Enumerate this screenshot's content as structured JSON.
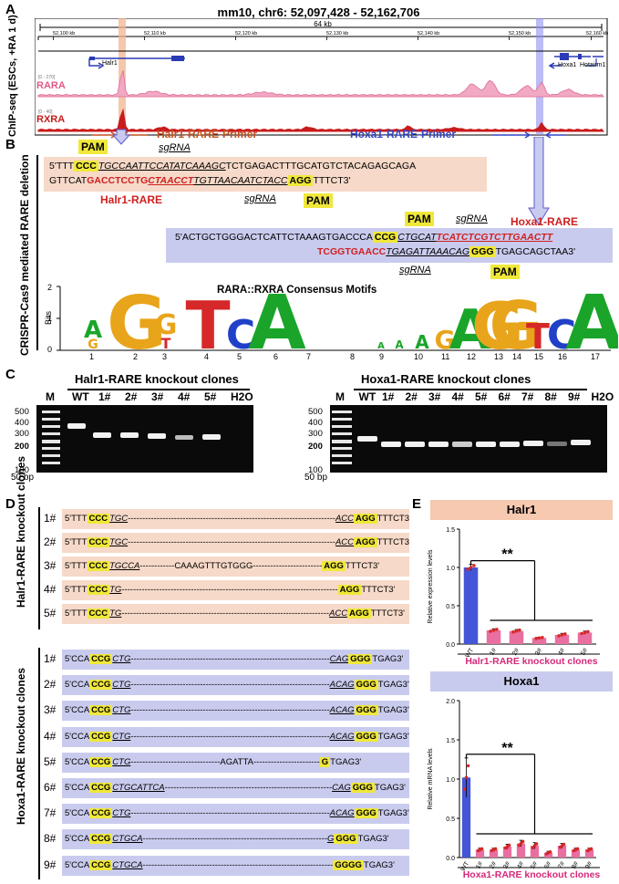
{
  "panelA": {
    "letter": "A",
    "coords": "mm10, chr6: 52,097,428 - 52,162,706",
    "span": "64 kb",
    "ticks": [
      "52,100 kb",
      "52,110 kb",
      "52,120 kb",
      "52,130 kb",
      "52,140 kb",
      "52,150 kb",
      "52,160 kb"
    ],
    "side_label": "ChIP-seq (ESCs, +RA 1 d)",
    "gene_halr1": "Halr1",
    "gene_hoxa1": "Hoxa1",
    "gene_hotairm1": "Hotairm1",
    "track_rara": "RARA",
    "track_rxra": "RXRA",
    "scale_rara": "[0 - 270]",
    "scale_rxra": "[0 - 40]",
    "primer_halr1": "Halr1-RARE-Primer",
    "primer_hoxa1": "Hoxa1-RARE-Primer"
  },
  "panelB": {
    "letter": "B",
    "side_label": "CRISPR-Cas9 mediated RARE deletion",
    "pam": "PAM",
    "sgrna": "sgRNA",
    "halr1_rare": "Halr1-RARE",
    "hoxa1_rare": "Hoxa1-RARE",
    "motif_title": "RARA::RXRA Consensus Motifs",
    "bits_label": "Bits",
    "bits_ticks": [
      "0",
      "1",
      "2"
    ],
    "positions": [
      "1",
      "2",
      "3",
      "4",
      "5",
      "6",
      "7",
      "8",
      "9",
      "10",
      "11",
      "12",
      "13",
      "14",
      "15",
      "16",
      "17"
    ],
    "halr_top": {
      "p1": "5'TTT",
      "pam": "CCC",
      "s1": "TGCCAATTCCATATCAAAGC",
      "p2": "TCTGAGACTTTGCATGTCTACAGAGCAGA"
    },
    "halr_bot": {
      "p1": "GTTCAT",
      "r1": "GACCTCCTG",
      "r2": "CTAACCT",
      "s1": "TGTTAACAATCTACC",
      "pam": "AGG",
      "p2": "TTTCT3'"
    },
    "hoxa_top": {
      "p1": "5'ACTGCTGGGACTCATTCTAAAGTGACCCA",
      "pam": "CCG",
      "s1": "CTGCAT",
      "r1": "TCATCTCGTCTTGAACTT"
    },
    "hoxa_bot": {
      "r1": "TCGGTGAACC",
      "s1": "TGAGATTAAACAG",
      "pam": "GGG",
      "p2": "TGAGCAGCTAA3'"
    }
  },
  "panelC": {
    "letter": "C",
    "halr_title": "Halr1-RARE knockout clones",
    "hoxa_title": "Hoxa1-RARE knockout clones",
    "halr_lanes": [
      "M",
      "WT",
      "1#",
      "2#",
      "3#",
      "4#",
      "5#",
      "H2O"
    ],
    "hoxa_lanes": [
      "M",
      "WT",
      "1#",
      "2#",
      "3#",
      "4#",
      "5#",
      "6#",
      "7#",
      "8#",
      "9#",
      "H2O"
    ],
    "markers": [
      "500",
      "400",
      "300",
      "200",
      "100"
    ],
    "ladder": "50 bp"
  },
  "panelD": {
    "letter": "D",
    "halr_side": "Halr1-RARE knockout clones",
    "hoxa_side": "Hoxa1-RARE knockout clones",
    "halr_rows": [
      {
        "n": "1#",
        "a": "5'TTT",
        "pam": "CCC",
        "s": "TGC",
        "mid": "------------------------------------------------------------------------",
        "s2": "ACC",
        "pam2": "AGG",
        "e": "TTTCT3'"
      },
      {
        "n": "2#",
        "a": "5'TTT",
        "pam": "CCC",
        "s": "TGC",
        "mid": "------------------------------------------------------------------------",
        "s2": "ACC",
        "pam2": "AGG",
        "e": "TTTCT3'"
      },
      {
        "n": "3#",
        "a": "5'TTT",
        "pam": "CCC",
        "s": "TGCCA",
        "mid": "------------CAAAGTTTGTGGG------------------------",
        "s2": "",
        "pam2": "AGG",
        "e": "TTTCT3'"
      },
      {
        "n": "4#",
        "a": "5'TTT",
        "pam": "CCC",
        "s": "TG",
        "mid": "---------------------------------------------------------------------------",
        "s2": "",
        "pam2": "AGG",
        "e": "TTTCT3'"
      },
      {
        "n": "5#",
        "a": "5'TTT",
        "pam": "CCC",
        "s": "TG",
        "mid": "------------------------------------------------------------------------",
        "s2": "ACC",
        "pam2": "AGG",
        "e": "TTTCT3'"
      }
    ],
    "hoxa_rows": [
      {
        "n": "1#",
        "a": "5'CCA",
        "pam": "CCG",
        "s": "CTG",
        "mid": "---------------------------------------------------------------------",
        "s2": "CAG",
        "pam2": "GGG",
        "e": "TGAG3'"
      },
      {
        "n": "2#",
        "a": "5'CCA",
        "pam": "CCG",
        "s": "CTG",
        "mid": "---------------------------------------------------------------------",
        "s2": "ACAG",
        "pam2": "GGG",
        "e": "TGAG3'"
      },
      {
        "n": "3#",
        "a": "5'CCA",
        "pam": "CCG",
        "s": "CTG",
        "mid": "---------------------------------------------------------------------",
        "s2": "ACAG",
        "pam2": "GGG",
        "e": "TGAG3'"
      },
      {
        "n": "4#",
        "a": "5'CCA",
        "pam": "CCG",
        "s": "CTG",
        "mid": "---------------------------------------------------------------------",
        "s2": "ACAG",
        "pam2": "GGG",
        "e": "TGAG3'"
      },
      {
        "n": "5#",
        "a": "5'CCA",
        "pam": "CCG",
        "s": "CTG",
        "mid": "-------------------------------AGATTA-----------------------",
        "s2": "",
        "pam2": "G",
        "e": "TGAG3'"
      },
      {
        "n": "6#",
        "a": "5'CCA",
        "pam": "CCG",
        "s": "CTGCATTCA",
        "mid": "----------------------------------------------------------",
        "s2": "CAG",
        "pam2": "GGG",
        "e": "TGAG3'"
      },
      {
        "n": "7#",
        "a": "5'CCA",
        "pam": "CCG",
        "s": "CTG",
        "mid": "---------------------------------------------------------------------",
        "s2": "ACAG",
        "pam2": "GGG",
        "e": "TGAG3'"
      },
      {
        "n": "8#",
        "a": "5'CCA",
        "pam": "CCG",
        "s": "CTGCA",
        "mid": "----------------------------------------------------------------",
        "s2": "G",
        "pam2": "GGG",
        "e": "TGAG3'"
      },
      {
        "n": "9#",
        "a": "5'CCA",
        "pam": "CCG",
        "s": "CTGCA",
        "mid": "------------------------------------------------------------------",
        "s2": "",
        "pam2": "GGGG",
        "e": "TGAG3'"
      }
    ]
  },
  "panelE": {
    "letter": "E",
    "colors": {
      "wt": "#4455d8",
      "ko": "#e86fa0",
      "dot": "#d62828",
      "halr_hdr": "#f6c9b0",
      "hoxa_hdr": "#c9cbee",
      "xlabel": "#d62878"
    },
    "significance": "**"
  },
  "chart_data": [
    {
      "type": "bar",
      "title": "Halr1",
      "ylabel": "Relative expression levels",
      "xlabel": "Halr1-RARE knockout clones",
      "categories": [
        "WT",
        "1#",
        "2#",
        "3#",
        "4#",
        "5#"
      ],
      "values": [
        1.0,
        0.18,
        0.17,
        0.08,
        0.12,
        0.15
      ],
      "errors": [
        0.04,
        0.02,
        0.02,
        0.01,
        0.02,
        0.02
      ],
      "yticks": [
        "0.0",
        "0.5",
        "1.0",
        "1.5"
      ],
      "ylim": [
        0,
        1.5
      ]
    },
    {
      "type": "bar",
      "title": "Hoxa1",
      "ylabel": "Relative mRNA levels",
      "xlabel": "Hoxa1-RARE knockout clones",
      "categories": [
        "WT",
        "1#",
        "2#",
        "3#",
        "4#",
        "5#",
        "6#",
        "7#",
        "8#",
        "9#"
      ],
      "values": [
        1.02,
        0.1,
        0.1,
        0.14,
        0.18,
        0.15,
        0.06,
        0.15,
        0.1,
        0.1
      ],
      "errors": [
        0.25,
        0.02,
        0.02,
        0.03,
        0.04,
        0.04,
        0.02,
        0.03,
        0.02,
        0.02
      ],
      "yticks": [
        "0.0",
        "0.5",
        "1.0",
        "1.5",
        "2.0"
      ],
      "ylim": [
        0,
        2.0
      ]
    }
  ]
}
